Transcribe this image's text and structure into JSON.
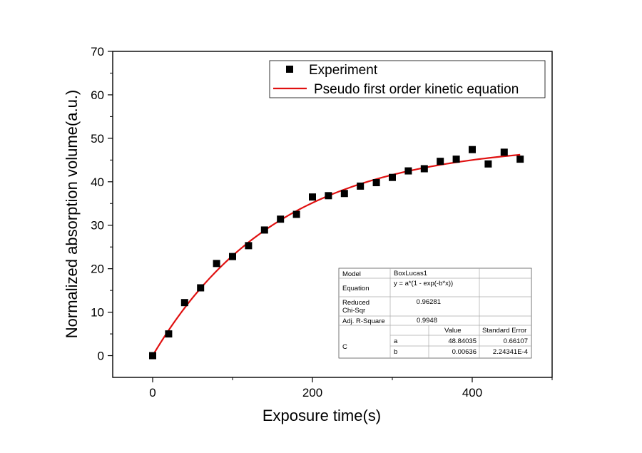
{
  "chart_data": {
    "type": "scatter",
    "xlabel": "Exposure time(s)",
    "ylabel": "Normalized absorption volume(a.u.)",
    "xlim": [
      -50,
      500
    ],
    "ylim": [
      -5,
      70
    ],
    "xticks": [
      0,
      200,
      400
    ],
    "yticks": [
      0,
      10,
      20,
      30,
      40,
      50,
      60,
      70
    ],
    "grid": false,
    "legend_position": "top-right",
    "series": [
      {
        "name": "Experiment",
        "kind": "scatter",
        "marker": "square",
        "color": "#000000",
        "x": [
          0,
          20,
          40,
          60,
          80,
          100,
          120,
          140,
          160,
          180,
          200,
          220,
          240,
          260,
          280,
          300,
          320,
          340,
          360,
          380,
          400,
          420,
          440,
          460
        ],
        "y": [
          0,
          5.0,
          12.2,
          15.6,
          21.2,
          22.8,
          25.3,
          28.9,
          31.4,
          32.5,
          36.5,
          36.8,
          37.3,
          39.0,
          39.8,
          41.0,
          42.5,
          43.0,
          44.7,
          45.2,
          47.4,
          44.1,
          46.8,
          45.2
        ]
      },
      {
        "name": "Pseudo first order kinetic equation",
        "kind": "line",
        "color": "#e01010",
        "formula": "y = a*(1 - exp(-b*x))",
        "a": 48.84035,
        "b": 0.00636,
        "x_range": [
          0,
          460
        ]
      }
    ],
    "fit_table": {
      "rows": [
        {
          "label": "Model",
          "value": "BoxLucas1"
        },
        {
          "label": "Equation",
          "value": "y = a*(1 - exp(-b*x))"
        },
        {
          "label_line1": "Reduced",
          "label_line2": "Chi-Sqr",
          "value": "0.96281"
        },
        {
          "label": "Adj. R-Square",
          "value": "0.9948"
        }
      ],
      "header_value": "Value",
      "header_error": "Standard Error",
      "group_label": "C",
      "params": [
        {
          "name": "a",
          "value": "48.84035",
          "error": "0.66107"
        },
        {
          "name": "b",
          "value": "0.00636",
          "error": "2.24341E-4"
        }
      ]
    }
  }
}
